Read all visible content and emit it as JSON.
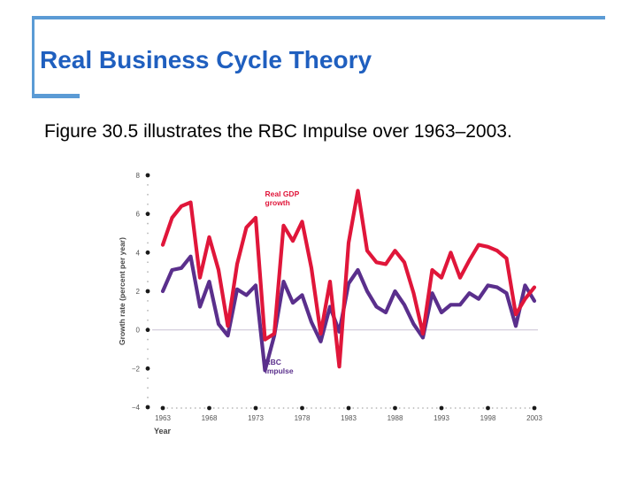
{
  "slide": {
    "title": "Real Business Cycle Theory",
    "body": "Figure 30.5 illustrates the RBC Impulse over 1963–2003."
  },
  "colors": {
    "frame": "#5b9bd5",
    "title": "#1f5fbf",
    "gdp_series": "#e0163a",
    "rbc_series": "#5a2f8c",
    "axis_text": "#555555",
    "zero_line": "#d0c8d8"
  },
  "chart_data": {
    "type": "line",
    "title": "",
    "xlabel": "Year",
    "ylabel": "Growth rate (percent per year)",
    "xlim": [
      1963,
      2003
    ],
    "ylim": [
      -4,
      8
    ],
    "x_ticks": [
      1963,
      1968,
      1973,
      1978,
      1983,
      1988,
      1993,
      1998,
      2003
    ],
    "y_ticks": [
      8,
      6,
      4,
      2,
      0,
      -2,
      -4
    ],
    "y_tick_labels": [
      "8",
      "6",
      "4",
      "2",
      "0",
      "−2",
      "−4"
    ],
    "x": [
      1963,
      1964,
      1965,
      1966,
      1967,
      1968,
      1969,
      1970,
      1971,
      1972,
      1973,
      1974,
      1975,
      1976,
      1977,
      1978,
      1979,
      1980,
      1981,
      1982,
      1983,
      1984,
      1985,
      1986,
      1987,
      1988,
      1989,
      1990,
      1991,
      1992,
      1993,
      1994,
      1995,
      1996,
      1997,
      1998,
      1999,
      2000,
      2001,
      2002,
      2003
    ],
    "series": [
      {
        "name": "Real GDP growth",
        "color": "#e0163a",
        "values": [
          4.4,
          5.8,
          6.4,
          6.6,
          2.7,
          4.8,
          3.1,
          0.2,
          3.4,
          5.3,
          5.8,
          -0.5,
          -0.2,
          5.4,
          4.6,
          5.6,
          3.2,
          -0.2,
          2.5,
          -1.9,
          4.5,
          7.2,
          4.1,
          3.5,
          3.4,
          4.1,
          3.5,
          1.9,
          -0.2,
          3.1,
          2.7,
          4.0,
          2.7,
          3.6,
          4.4,
          4.3,
          4.1,
          3.7,
          0.8,
          1.6,
          2.2
        ]
      },
      {
        "name": "RBC impulse",
        "color": "#5a2f8c",
        "values": [
          2.0,
          3.1,
          3.2,
          3.8,
          1.2,
          2.5,
          0.3,
          -0.3,
          2.1,
          1.8,
          2.3,
          -2.1,
          -0.3,
          2.5,
          1.4,
          1.8,
          0.4,
          -0.6,
          1.2,
          -0.1,
          2.4,
          3.1,
          2.0,
          1.2,
          0.9,
          2.0,
          1.3,
          0.3,
          -0.4,
          1.9,
          0.9,
          1.3,
          1.3,
          1.9,
          1.6,
          2.3,
          2.2,
          1.9,
          0.2,
          2.3,
          1.5
        ]
      }
    ],
    "annotations": [
      {
        "lines": [
          "Real GDP",
          "growth"
        ],
        "series": "Real GDP growth"
      },
      {
        "lines": [
          "RBC",
          "impulse"
        ],
        "series": "RBC impulse"
      }
    ],
    "grid": false,
    "legend": "inline-labels"
  }
}
